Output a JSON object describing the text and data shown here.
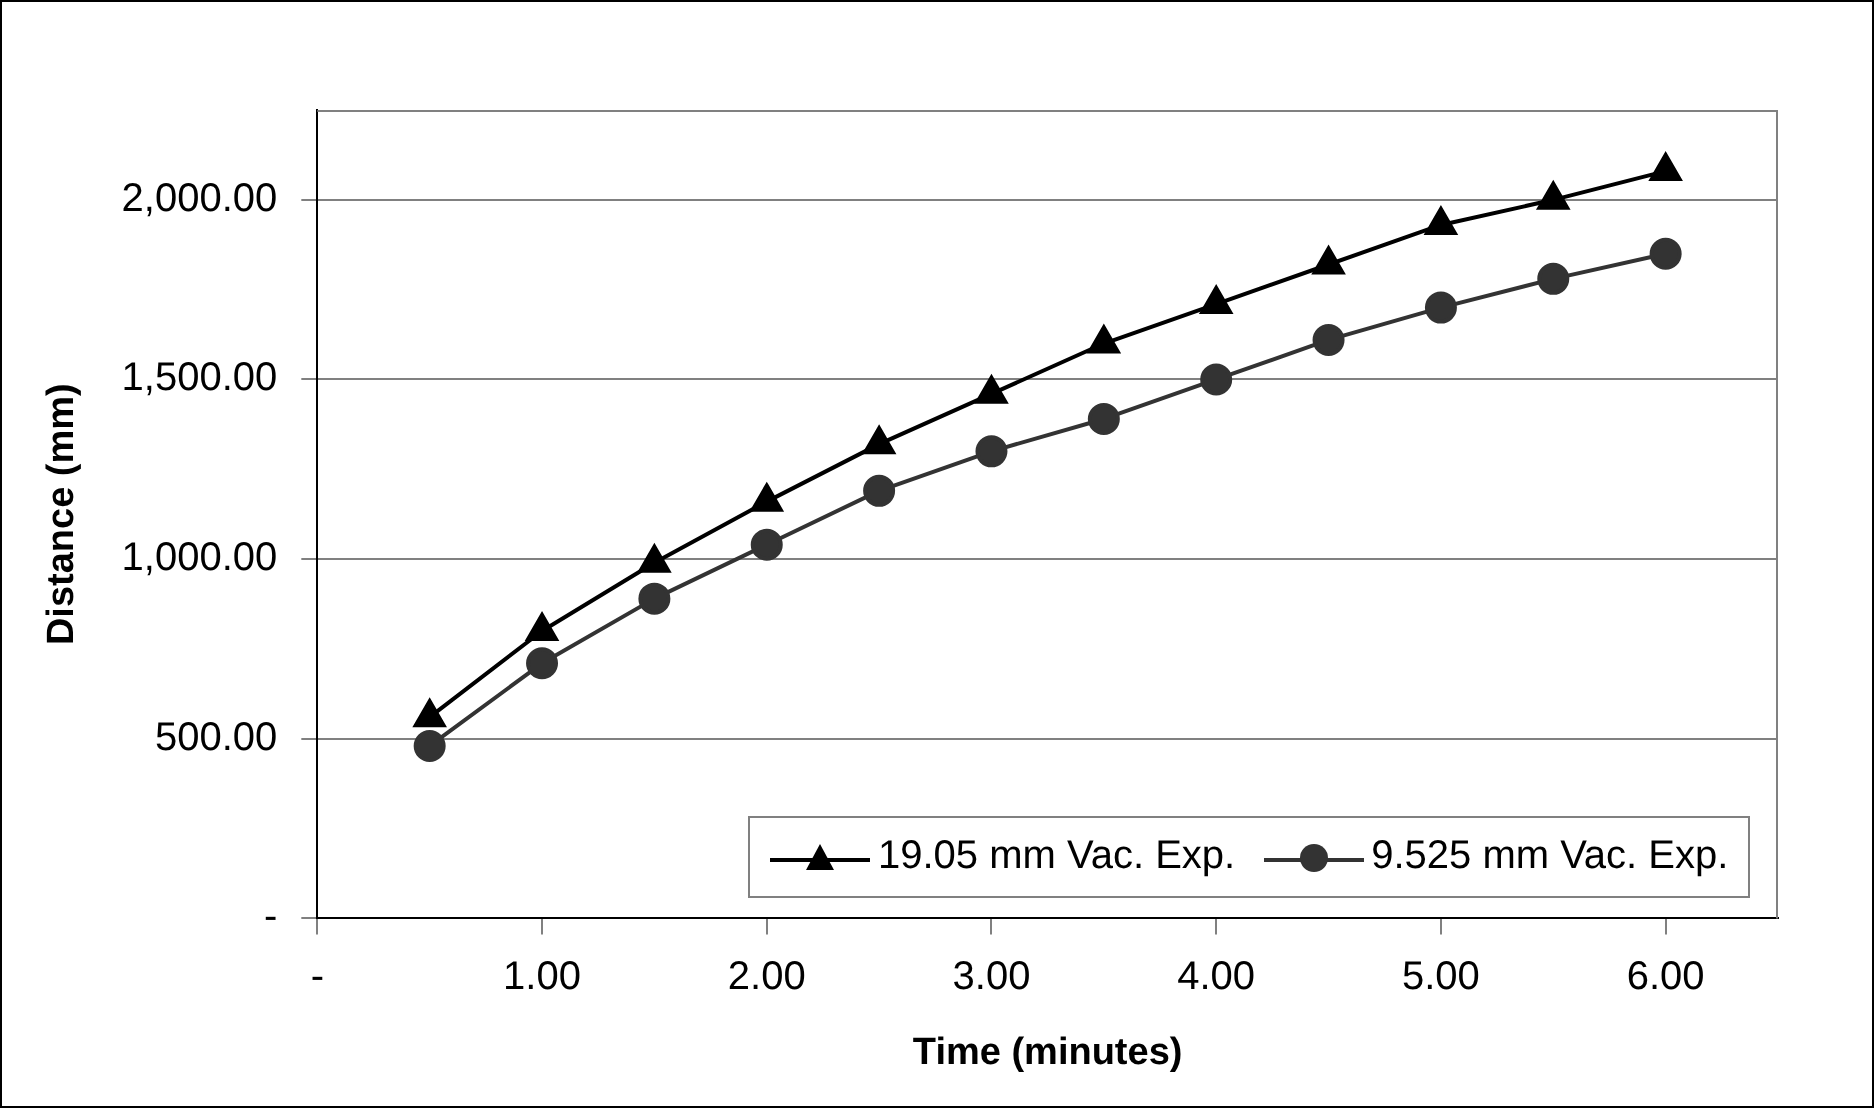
{
  "chart_data": {
    "type": "line",
    "xlabel": "Time (minutes)",
    "ylabel": "Distance (mm)",
    "x": [
      0.5,
      1,
      1.5,
      2,
      2.5,
      3,
      3.5,
      4,
      4.5,
      5,
      5.5,
      6
    ],
    "series": [
      {
        "name": "19.05 mm Vac. Exp.",
        "color": "#000000",
        "marker": "triangle",
        "values": [
          560,
          800,
          990,
          1160,
          1320,
          1460,
          1600,
          1710,
          1820,
          1930,
          2000,
          2080
        ]
      },
      {
        "name": "9.525 mm Vac. Exp.",
        "color": "#333333",
        "marker": "circle",
        "values": [
          480,
          710,
          890,
          1040,
          1190,
          1300,
          1390,
          1500,
          1610,
          1700,
          1780,
          1850
        ]
      }
    ],
    "xlim": [
      0,
      6.5
    ],
    "ylim": [
      0,
      2250
    ],
    "xticks": [
      {
        "value": 0,
        "label": "-"
      },
      {
        "value": 1,
        "label": "1.00"
      },
      {
        "value": 2,
        "label": "2.00"
      },
      {
        "value": 3,
        "label": "3.00"
      },
      {
        "value": 4,
        "label": "4.00"
      },
      {
        "value": 5,
        "label": "5.00"
      },
      {
        "value": 6,
        "label": "6.00"
      }
    ],
    "yticks": [
      {
        "value": 0,
        "label": "-"
      },
      {
        "value": 500,
        "label": "500.00"
      },
      {
        "value": 1000,
        "label": "1,000.00"
      },
      {
        "value": 1500,
        "label": "1,500.00"
      },
      {
        "value": 2000,
        "label": "2,000.00"
      }
    ],
    "grid": "y",
    "legend": "bottom",
    "line_style": "solid"
  }
}
